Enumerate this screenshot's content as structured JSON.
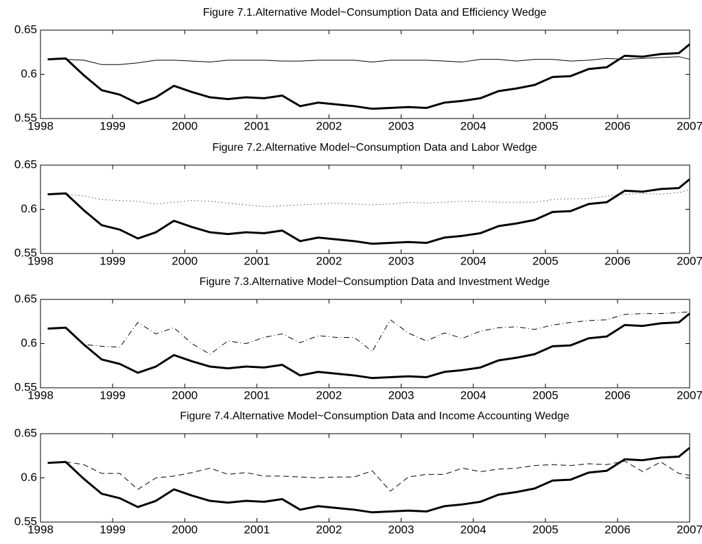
{
  "chart_data": [
    {
      "type": "line",
      "title": "Figure 7.1.Alternative Model~Consumption Data and Efficiency Wedge",
      "x": [
        1998.1,
        1998.35,
        1998.6,
        1998.85,
        1999.1,
        1999.35,
        1999.6,
        1999.85,
        2000.1,
        2000.35,
        2000.6,
        2000.85,
        2001.1,
        2001.35,
        2001.6,
        2001.85,
        2002.1,
        2002.35,
        2002.6,
        2002.85,
        2003.1,
        2003.35,
        2003.6,
        2003.85,
        2004.1,
        2004.35,
        2004.6,
        2004.85,
        2005.1,
        2005.35,
        2005.6,
        2005.85,
        2006.1,
        2006.35,
        2006.6,
        2006.85,
        2007
      ],
      "series": [
        {
          "color": "#000000",
          "width": 3,
          "dash": "solid",
          "values": [
            0.617,
            0.618,
            0.599,
            0.582,
            0.577,
            0.567,
            0.574,
            0.587,
            0.58,
            0.574,
            0.572,
            0.574,
            0.573,
            0.576,
            0.564,
            0.568,
            0.566,
            0.564,
            0.561,
            0.562,
            0.563,
            0.562,
            0.568,
            0.57,
            0.573,
            0.581,
            0.584,
            0.588,
            0.597,
            0.598,
            0.606,
            0.608,
            0.621,
            0.62,
            0.623,
            0.624,
            0.634
          ]
        },
        {
          "color": "#000000",
          "width": 1,
          "dash": "solid",
          "values": [
            0.617,
            0.617,
            0.616,
            0.611,
            0.611,
            0.613,
            0.616,
            0.616,
            0.615,
            0.614,
            0.616,
            0.616,
            0.616,
            0.615,
            0.615,
            0.616,
            0.616,
            0.616,
            0.614,
            0.616,
            0.616,
            0.616,
            0.615,
            0.614,
            0.617,
            0.617,
            0.615,
            0.617,
            0.617,
            0.615,
            0.616,
            0.618,
            0.617,
            0.618,
            0.619,
            0.62,
            0.617
          ]
        }
      ],
      "xlim": [
        1998,
        2007
      ],
      "ylim": [
        0.55,
        0.65
      ],
      "xticks": [
        1998,
        1999,
        2000,
        2001,
        2002,
        2003,
        2004,
        2005,
        2006,
        2007
      ],
      "yticks": [
        0.55,
        0.6,
        0.65
      ]
    },
    {
      "type": "line",
      "title": "Figure 7.2.Alternative Model~Consumption Data and Labor Wedge",
      "x": [
        1998.1,
        1998.35,
        1998.6,
        1998.85,
        1999.1,
        1999.35,
        1999.6,
        1999.85,
        2000.1,
        2000.35,
        2000.6,
        2000.85,
        2001.1,
        2001.35,
        2001.6,
        2001.85,
        2002.1,
        2002.35,
        2002.6,
        2002.85,
        2003.1,
        2003.35,
        2003.6,
        2003.85,
        2004.1,
        2004.35,
        2004.6,
        2004.85,
        2005.1,
        2005.35,
        2005.6,
        2005.85,
        2006.1,
        2006.35,
        2006.6,
        2006.85,
        2007
      ],
      "series": [
        {
          "color": "#000000",
          "width": 3,
          "dash": "solid",
          "values": [
            0.617,
            0.618,
            0.599,
            0.582,
            0.577,
            0.567,
            0.574,
            0.587,
            0.58,
            0.574,
            0.572,
            0.574,
            0.573,
            0.576,
            0.564,
            0.568,
            0.566,
            0.564,
            0.561,
            0.562,
            0.563,
            0.562,
            0.568,
            0.57,
            0.573,
            0.581,
            0.584,
            0.588,
            0.597,
            0.598,
            0.606,
            0.608,
            0.621,
            0.62,
            0.623,
            0.624,
            0.634
          ]
        },
        {
          "color": "#000000",
          "width": 1,
          "dash": "dotted",
          "values": [
            0.617,
            0.617,
            0.615,
            0.611,
            0.61,
            0.609,
            0.606,
            0.608,
            0.61,
            0.609,
            0.607,
            0.605,
            0.603,
            0.604,
            0.605,
            0.606,
            0.607,
            0.606,
            0.605,
            0.606,
            0.608,
            0.607,
            0.608,
            0.609,
            0.609,
            0.608,
            0.608,
            0.608,
            0.611,
            0.612,
            0.612,
            0.615,
            0.617,
            0.618,
            0.617,
            0.619,
            0.622
          ]
        }
      ],
      "xlim": [
        1998,
        2007
      ],
      "ylim": [
        0.55,
        0.65
      ],
      "xticks": [
        1998,
        1999,
        2000,
        2001,
        2002,
        2003,
        2004,
        2005,
        2006,
        2007
      ],
      "yticks": [
        0.55,
        0.6,
        0.65
      ]
    },
    {
      "type": "line",
      "title": "Figure 7.3.Alternative Model~Consumption Data and Investment Wedge",
      "x": [
        1998.1,
        1998.35,
        1998.6,
        1998.85,
        1999.1,
        1999.35,
        1999.6,
        1999.85,
        2000.1,
        2000.35,
        2000.6,
        2000.85,
        2001.1,
        2001.35,
        2001.6,
        2001.85,
        2002.1,
        2002.35,
        2002.6,
        2002.85,
        2003.1,
        2003.35,
        2003.6,
        2003.85,
        2004.1,
        2004.35,
        2004.6,
        2004.85,
        2005.1,
        2005.35,
        2005.6,
        2005.85,
        2006.1,
        2006.35,
        2006.6,
        2006.85,
        2007
      ],
      "series": [
        {
          "color": "#000000",
          "width": 3,
          "dash": "solid",
          "values": [
            0.617,
            0.618,
            0.599,
            0.582,
            0.577,
            0.567,
            0.574,
            0.587,
            0.58,
            0.574,
            0.572,
            0.574,
            0.573,
            0.576,
            0.564,
            0.568,
            0.566,
            0.564,
            0.561,
            0.562,
            0.563,
            0.562,
            0.568,
            0.57,
            0.573,
            0.581,
            0.584,
            0.588,
            0.597,
            0.598,
            0.606,
            0.608,
            0.621,
            0.62,
            0.623,
            0.624,
            0.634
          ]
        },
        {
          "color": "#000000",
          "width": 1,
          "dash": "dashdot",
          "values": [
            0.617,
            0.618,
            0.599,
            0.597,
            0.596,
            0.624,
            0.611,
            0.618,
            0.6,
            0.588,
            0.603,
            0.6,
            0.607,
            0.611,
            0.601,
            0.609,
            0.607,
            0.607,
            0.591,
            0.627,
            0.612,
            0.603,
            0.612,
            0.606,
            0.614,
            0.618,
            0.619,
            0.616,
            0.621,
            0.624,
            0.626,
            0.627,
            0.633,
            0.634,
            0.634,
            0.635,
            0.636
          ]
        }
      ],
      "xlim": [
        1998,
        2007
      ],
      "ylim": [
        0.55,
        0.65
      ],
      "xticks": [
        1998,
        1999,
        2000,
        2001,
        2002,
        2003,
        2004,
        2005,
        2006,
        2007
      ],
      "yticks": [
        0.55,
        0.6,
        0.65
      ]
    },
    {
      "type": "line",
      "title": "Figure 7.4.Alternative Model~Consumption Data and Income Accounting Wedge",
      "x": [
        1998.1,
        1998.35,
        1998.6,
        1998.85,
        1999.1,
        1999.35,
        1999.6,
        1999.85,
        2000.1,
        2000.35,
        2000.6,
        2000.85,
        2001.1,
        2001.35,
        2001.6,
        2001.85,
        2002.1,
        2002.35,
        2002.6,
        2002.85,
        2003.1,
        2003.35,
        2003.6,
        2003.85,
        2004.1,
        2004.35,
        2004.6,
        2004.85,
        2005.1,
        2005.35,
        2005.6,
        2005.85,
        2006.1,
        2006.35,
        2006.6,
        2006.85,
        2007
      ],
      "series": [
        {
          "color": "#000000",
          "width": 3,
          "dash": "solid",
          "values": [
            0.617,
            0.618,
            0.599,
            0.582,
            0.577,
            0.567,
            0.574,
            0.587,
            0.58,
            0.574,
            0.572,
            0.574,
            0.573,
            0.576,
            0.564,
            0.568,
            0.566,
            0.564,
            0.561,
            0.562,
            0.563,
            0.562,
            0.568,
            0.57,
            0.573,
            0.581,
            0.584,
            0.588,
            0.597,
            0.598,
            0.606,
            0.608,
            0.621,
            0.62,
            0.623,
            0.624,
            0.634
          ]
        },
        {
          "color": "#000000",
          "width": 1,
          "dash": "dashed",
          "values": [
            0.617,
            0.618,
            0.615,
            0.605,
            0.605,
            0.587,
            0.6,
            0.602,
            0.606,
            0.611,
            0.604,
            0.606,
            0.602,
            0.602,
            0.601,
            0.6,
            0.601,
            0.601,
            0.608,
            0.585,
            0.601,
            0.604,
            0.604,
            0.611,
            0.607,
            0.61,
            0.611,
            0.614,
            0.615,
            0.614,
            0.616,
            0.615,
            0.619,
            0.607,
            0.618,
            0.605,
            0.603
          ]
        }
      ],
      "xlim": [
        1998,
        2007
      ],
      "ylim": [
        0.55,
        0.65
      ],
      "xticks": [
        1998,
        1999,
        2000,
        2001,
        2002,
        2003,
        2004,
        2005,
        2006,
        2007
      ],
      "yticks": [
        0.55,
        0.6,
        0.65
      ]
    }
  ]
}
